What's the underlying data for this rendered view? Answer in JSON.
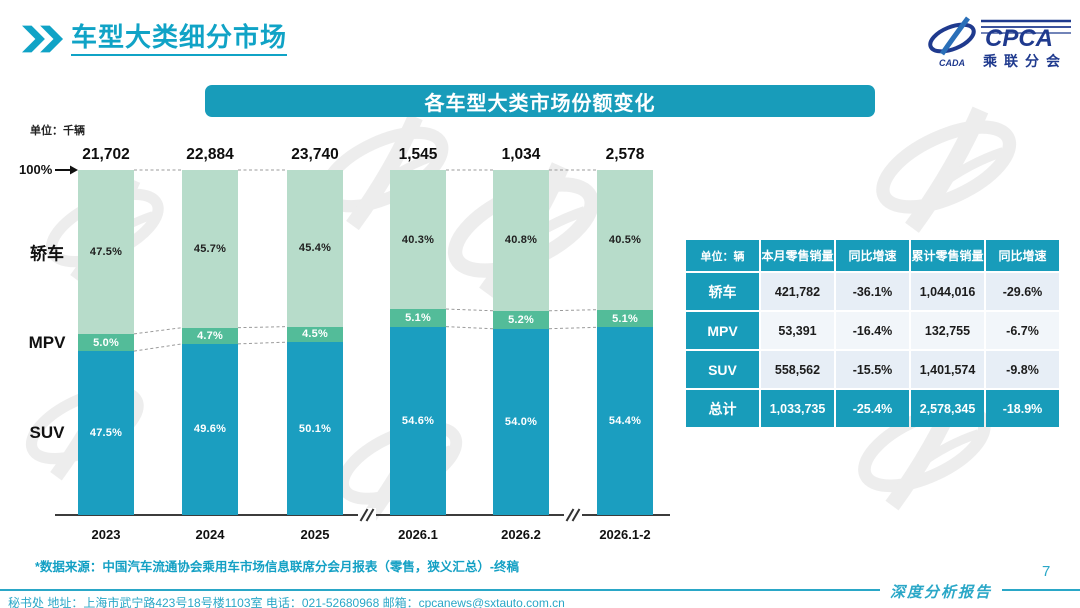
{
  "page": {
    "title": "车型大类细分市场",
    "banner_title": "各车型大类市场份额变化",
    "unit_label": "单位：千辆",
    "axis_top_label": "100%",
    "source_note": "*数据来源：中国汽车流通协会乘用车市场信息联席分会月报表（零售，狭义汇总）-终稿",
    "footer_contact": "秘书处   地址：上海市武宁路423号18号楼1103室  电话：021-52680968   邮箱：cpcanews@sxtauto.com.cn",
    "report_label": "深度分析报告",
    "page_number": "7"
  },
  "logo": {
    "name": "CPCA",
    "subtitle": "乘联分会",
    "swoosh_text": "CADA"
  },
  "chart_data": {
    "type": "bar",
    "stacked": true,
    "percent_normalized": true,
    "title": "各车型大类市场份额变化",
    "unit": "千辆",
    "categories": [
      "2023",
      "2024",
      "2025",
      "2026.1",
      "2026.2",
      "2026.1-2"
    ],
    "totals": [
      "21,702",
      "22,884",
      "23,740",
      "1,545",
      "1,034",
      "2,578"
    ],
    "series": [
      {
        "name": "轿车",
        "color": "#b7dcca",
        "values": [
          47.5,
          45.7,
          45.4,
          40.3,
          40.8,
          40.5
        ]
      },
      {
        "name": "MPV",
        "color": "#53bc99",
        "values": [
          5.0,
          4.7,
          4.5,
          5.1,
          5.2,
          5.1
        ]
      },
      {
        "name": "SUV",
        "color": "#1b9ec0",
        "values": [
          47.5,
          49.6,
          50.1,
          54.6,
          54.0,
          54.4
        ]
      }
    ],
    "value_suffix": "%",
    "ylim": [
      0,
      100
    ],
    "axis_breaks_after": [
      2,
      4
    ],
    "grid": false,
    "legend_position": "left"
  },
  "table": {
    "unit_header": "单位：辆",
    "columns": [
      "本月零售销量",
      "同比增速",
      "累计零售销量",
      "同比增速"
    ],
    "rows": [
      {
        "label": "轿车",
        "cells": [
          "421,782",
          "-36.1%",
          "1,044,016",
          "-29.6%"
        ],
        "total": false
      },
      {
        "label": "MPV",
        "cells": [
          "53,391",
          "-16.4%",
          "132,755",
          "-6.7%"
        ],
        "total": false
      },
      {
        "label": "SUV",
        "cells": [
          "558,562",
          "-15.5%",
          "1,401,574",
          "-9.8%"
        ],
        "total": false
      },
      {
        "label": "总计",
        "cells": [
          "1,033,735",
          "-25.4%",
          "2,578,345",
          "-18.9%"
        ],
        "total": true
      }
    ]
  },
  "colors": {
    "accent_teal": "#189cba",
    "title_teal": "#10a3c6",
    "logo_blue": "#1f3a8e",
    "sedan_green": "#b7dcca",
    "mpv_green": "#53bc99",
    "suv_teal": "#1b9ec0",
    "footer_teal": "#2aa7c7"
  }
}
